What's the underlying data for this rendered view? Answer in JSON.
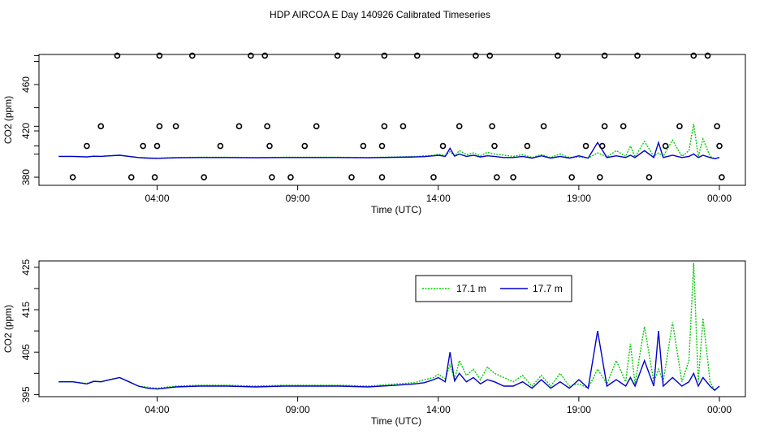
{
  "chart_data": {
    "title": "HDP AIRCOA E  Day 140926  Calibrated Timeseries",
    "x_start": "00:00",
    "x_end": "24:00",
    "panels": [
      {
        "type": "line+scatter",
        "xlabel": "Time (UTC)",
        "ylabel": "CO2 (ppm)",
        "xlim": [
          "00:00",
          "24:00"
        ],
        "ylim": [
          373,
          486
        ],
        "xticks": [
          "04:00",
          "09:00",
          "14:00",
          "19:00",
          "00:00"
        ],
        "yticks": [
          380,
          420,
          460
        ],
        "scatter_levels": [
          380,
          407,
          424,
          485
        ],
        "scatter": {
          "marker": "open-circle",
          "points": [
            [
              "01:00",
              380
            ],
            [
              "01:30",
              407
            ],
            [
              "02:00",
              424
            ],
            [
              "02:35",
              485
            ],
            [
              "03:05",
              380
            ],
            [
              "03:30",
              407
            ],
            [
              "03:55",
              380
            ],
            [
              "04:00",
              407
            ],
            [
              "04:05",
              424
            ],
            [
              "04:05",
              485
            ],
            [
              "04:40",
              424
            ],
            [
              "05:15",
              485
            ],
            [
              "05:40",
              380
            ],
            [
              "06:15",
              407
            ],
            [
              "06:55",
              424
            ],
            [
              "07:20",
              485
            ],
            [
              "07:50",
              485
            ],
            [
              "07:55",
              424
            ],
            [
              "08:00",
              407
            ],
            [
              "08:05",
              380
            ],
            [
              "08:45",
              380
            ],
            [
              "09:15",
              407
            ],
            [
              "09:40",
              424
            ],
            [
              "10:25",
              485
            ],
            [
              "10:55",
              380
            ],
            [
              "11:20",
              407
            ],
            [
              "12:00",
              407
            ],
            [
              "12:00",
              380
            ],
            [
              "12:05",
              424
            ],
            [
              "12:05",
              485
            ],
            [
              "12:45",
              424
            ],
            [
              "13:15",
              485
            ],
            [
              "13:50",
              380
            ],
            [
              "14:10",
              407
            ],
            [
              "14:45",
              424
            ],
            [
              "15:20",
              485
            ],
            [
              "15:50",
              485
            ],
            [
              "15:55",
              424
            ],
            [
              "16:00",
              407
            ],
            [
              "16:05",
              380
            ],
            [
              "16:40",
              380
            ],
            [
              "17:10",
              407
            ],
            [
              "17:45",
              424
            ],
            [
              "18:15",
              485
            ],
            [
              "18:45",
              380
            ],
            [
              "19:15",
              407
            ],
            [
              "19:45",
              380
            ],
            [
              "19:50",
              407
            ],
            [
              "19:55",
              424
            ],
            [
              "19:55",
              485
            ],
            [
              "20:35",
              424
            ],
            [
              "21:05",
              485
            ],
            [
              "21:30",
              380
            ],
            [
              "22:05",
              407
            ],
            [
              "22:35",
              424
            ],
            [
              "23:05",
              485
            ],
            [
              "23:35",
              485
            ],
            [
              "23:55",
              424
            ],
            [
              "24:00",
              407
            ],
            [
              "24:05",
              380
            ]
          ]
        },
        "legend": []
      },
      {
        "type": "line",
        "xlabel": "Time (UTC)",
        "ylabel": "CO2 (ppm)",
        "xlim": [
          "00:00",
          "24:00"
        ],
        "ylim": [
          394.5,
          426.5
        ],
        "xticks": [
          "04:00",
          "09:00",
          "14:00",
          "19:00",
          "00:00"
        ],
        "yticks": [
          395,
          405,
          415,
          425
        ],
        "legend_position": "top-center",
        "legend": [
          {
            "name": "17.1 m",
            "color": "#00cc00",
            "dash": "dotted"
          },
          {
            "name": "17.7 m",
            "color": "#0000cc",
            "dash": "solid"
          }
        ]
      }
    ],
    "series": [
      {
        "name": "17.1 m",
        "color": "#00cc00",
        "x": [
          "00:30",
          "01:00",
          "01:30",
          "01:45",
          "02:00",
          "02:20",
          "02:40",
          "03:00",
          "03:20",
          "03:40",
          "04:00",
          "04:40",
          "05:30",
          "06:30",
          "07:30",
          "08:30",
          "09:30",
          "10:30",
          "11:30",
          "12:30",
          "13:10",
          "13:30",
          "13:50",
          "14:00",
          "14:15",
          "14:25",
          "14:35",
          "14:45",
          "15:00",
          "15:15",
          "15:30",
          "15:45",
          "16:00",
          "16:20",
          "16:40",
          "17:00",
          "17:20",
          "17:40",
          "18:00",
          "18:20",
          "18:40",
          "19:00",
          "19:20",
          "19:40",
          "20:00",
          "20:20",
          "20:40",
          "20:50",
          "21:00",
          "21:20",
          "21:40",
          "21:50",
          "22:00",
          "22:20",
          "22:40",
          "22:55",
          "23:05",
          "23:15",
          "23:25",
          "23:40",
          "23:50",
          "24:00"
        ],
        "y": [
          398,
          398,
          397.6,
          398.2,
          398,
          398.6,
          399,
          398,
          397,
          396.7,
          396.5,
          397,
          397.2,
          397.2,
          397,
          397.2,
          397.2,
          397.2,
          397,
          397.5,
          397.8,
          398.5,
          399,
          399.8,
          398.7,
          402,
          398.5,
          403,
          399.5,
          401,
          398.5,
          401.5,
          400,
          399,
          398,
          399.5,
          397,
          399.5,
          397,
          400,
          397,
          397.5,
          396.5,
          401,
          397.5,
          403,
          398,
          407,
          397.5,
          411,
          398,
          401,
          398,
          412,
          398,
          403,
          426,
          398,
          413,
          398,
          396,
          397
        ]
      },
      {
        "name": "17.7 m",
        "color": "#0000cc",
        "x": [
          "00:30",
          "01:00",
          "01:30",
          "01:45",
          "02:00",
          "02:20",
          "02:40",
          "03:00",
          "03:20",
          "03:40",
          "04:00",
          "04:40",
          "05:30",
          "06:30",
          "07:30",
          "08:30",
          "09:30",
          "10:30",
          "11:30",
          "12:30",
          "13:10",
          "13:30",
          "13:50",
          "14:00",
          "14:15",
          "14:25",
          "14:35",
          "14:45",
          "15:00",
          "15:15",
          "15:30",
          "15:45",
          "16:00",
          "16:20",
          "16:40",
          "17:00",
          "17:20",
          "17:40",
          "18:00",
          "18:20",
          "18:40",
          "19:00",
          "19:20",
          "19:40",
          "20:00",
          "20:20",
          "20:40",
          "20:50",
          "21:00",
          "21:20",
          "21:40",
          "21:50",
          "22:00",
          "22:20",
          "22:40",
          "22:55",
          "23:05",
          "23:15",
          "23:25",
          "23:40",
          "23:50",
          "24:00"
        ],
        "y": [
          398,
          398,
          397.5,
          398.1,
          398,
          398.5,
          399,
          398,
          397,
          396.5,
          396.3,
          396.8,
          397,
          397,
          396.8,
          397,
          397,
          397,
          396.8,
          397.2,
          397.5,
          397.8,
          398.5,
          399,
          398,
          405,
          398.2,
          400,
          398,
          399,
          397.5,
          398.5,
          398,
          397,
          397,
          398,
          396.5,
          398.5,
          396.5,
          398,
          396.5,
          398.5,
          396.5,
          410,
          397,
          398.5,
          397,
          399,
          397,
          403,
          397,
          410,
          397,
          399,
          397,
          398,
          400,
          397,
          399,
          397,
          396,
          397
        ]
      }
    ]
  }
}
